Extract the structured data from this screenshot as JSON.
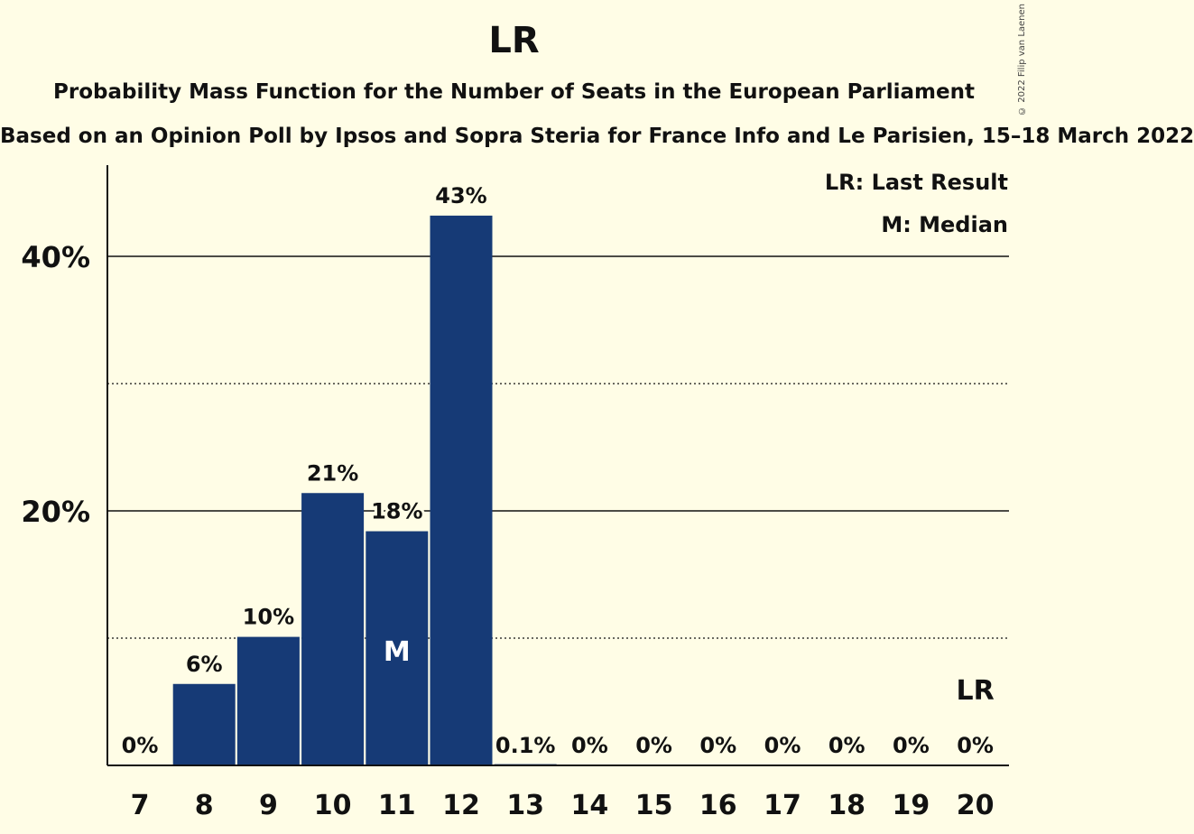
{
  "chart_data": {
    "type": "bar",
    "title": "LR",
    "subtitle": "Probability Mass Function for the Number of Seats in the European Parliament",
    "caption": "Based on an Opinion Poll by Ipsos and Sopra Steria for France Info and Le Parisien, 15–18 March 2022",
    "copyright": "© 2022 Filip van Laenen",
    "categories": [
      "7",
      "8",
      "9",
      "10",
      "11",
      "12",
      "13",
      "14",
      "15",
      "16",
      "17",
      "18",
      "19",
      "20"
    ],
    "values": [
      0,
      6.4,
      10.1,
      21.4,
      18.4,
      43.2,
      0.1,
      0,
      0,
      0,
      0,
      0,
      0,
      0
    ],
    "data_labels": [
      "0%",
      "6%",
      "10%",
      "21%",
      "18%",
      "43%",
      "0.1%",
      "0%",
      "0%",
      "0%",
      "0%",
      "0%",
      "0%",
      "0%"
    ],
    "ylim": [
      0,
      47
    ],
    "yticks": [
      {
        "value": 20,
        "label": "20%"
      },
      {
        "value": 40,
        "label": "40%"
      }
    ],
    "minor_gridlines": [
      10,
      30
    ],
    "median_category": "11",
    "median_marker": "M",
    "last_result_category": "20",
    "last_result_marker": "LR",
    "legend": [
      "LR: Last Result",
      "M: Median"
    ],
    "legend_position": "top-right",
    "bar_color": "#163a76"
  }
}
